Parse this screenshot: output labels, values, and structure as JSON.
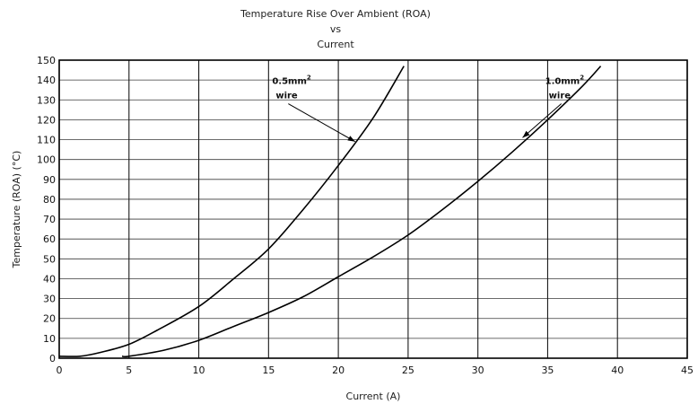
{
  "chart_data": {
    "type": "line",
    "title": [
      "Temperature Rise Over Ambient (ROA)",
      "vs",
      "Current"
    ],
    "xlabel": "Current (A)",
    "ylabel": "Temperature (ROA) (°C)",
    "xlim": [
      0,
      45
    ],
    "ylim": [
      0,
      150
    ],
    "xticks": [
      0,
      5,
      10,
      15,
      20,
      25,
      30,
      35,
      40,
      45
    ],
    "yticks": [
      0,
      10,
      20,
      30,
      40,
      50,
      60,
      70,
      80,
      90,
      100,
      110,
      120,
      130,
      140,
      150
    ],
    "grid": true,
    "series": [
      {
        "name": "0.5mm² wire",
        "x": [
          1.5,
          3,
          5,
          7,
          10,
          12.5,
          15,
          17.5,
          20,
          22.5,
          24.7
        ],
        "y": [
          1,
          3,
          7,
          14,
          26,
          40,
          55,
          75,
          97,
          121,
          147
        ]
      },
      {
        "name": "1.0mm² wire",
        "x": [
          5,
          7.5,
          10,
          12.5,
          15,
          17.5,
          20,
          22.5,
          25,
          27.5,
          30,
          32.5,
          35,
          37.5,
          38.8
        ],
        "y": [
          1,
          4,
          9,
          16,
          23,
          31,
          41,
          51,
          62,
          75,
          89,
          104,
          120,
          137,
          147
        ]
      }
    ],
    "annotations": [
      {
        "lines": [
          "0.5mm",
          "wire"
        ],
        "sup": "2",
        "points_to_series": 0,
        "at": [
          21.2,
          109
        ]
      },
      {
        "lines": [
          "1.0mm",
          "wire"
        ],
        "sup": "2",
        "points_to_series": 1,
        "at": [
          33.2,
          111
        ]
      }
    ]
  }
}
